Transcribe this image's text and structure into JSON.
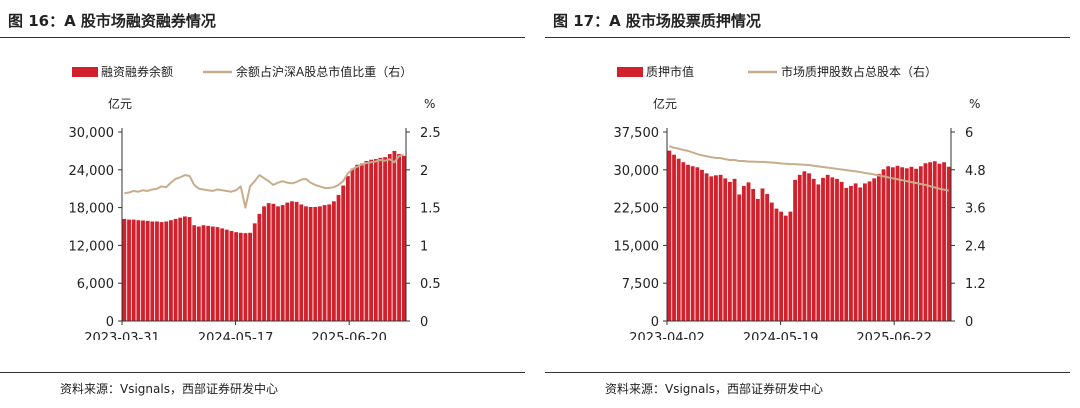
{
  "chart_data": [
    {
      "id": "fig16",
      "type": "bar+line",
      "title": "图 16：A 股市场融资融券情况",
      "left_unit": "亿元",
      "right_unit": "%",
      "legend": [
        "融资融券余额",
        "余额占沪深A股总市值比重（右）"
      ],
      "source": "资料来源：Vsignals，西部证券研发中心",
      "x_ticks": [
        "2023-03-31",
        "2024-05-17",
        "2025-06-20"
      ],
      "y_left_ticks": [
        "0",
        "6,000",
        "12,000",
        "18,000",
        "24,000",
        "30,000"
      ],
      "y_left_range": [
        0,
        30000
      ],
      "y_right_ticks": [
        "0",
        "0.5",
        "1",
        "1.5",
        "2",
        "2.5"
      ],
      "y_right_range": [
        0,
        2.5
      ],
      "bar_values": [
        16200,
        16100,
        16100,
        16000,
        15950,
        15900,
        15800,
        15800,
        15700,
        15800,
        16000,
        16200,
        16400,
        16600,
        16500,
        15200,
        15000,
        15200,
        15100,
        15000,
        14900,
        14700,
        14500,
        14300,
        14100,
        14000,
        13950,
        14000,
        15500,
        17000,
        18200,
        18700,
        18600,
        18200,
        18400,
        18800,
        19000,
        18900,
        18500,
        18200,
        18100,
        18100,
        18200,
        18400,
        18500,
        19000,
        20000,
        21500,
        23000,
        24200,
        24800,
        25000,
        25400,
        25600,
        25700,
        25900,
        26000,
        26500,
        27000,
        26500,
        26200
      ],
      "line_values": [
        1.69,
        1.7,
        1.72,
        1.71,
        1.73,
        1.72,
        1.74,
        1.75,
        1.78,
        1.77,
        1.83,
        1.88,
        1.9,
        1.93,
        1.92,
        1.8,
        1.75,
        1.74,
        1.73,
        1.72,
        1.74,
        1.73,
        1.72,
        1.71,
        1.73,
        1.78,
        1.5,
        1.78,
        1.85,
        1.93,
        1.89,
        1.85,
        1.8,
        1.83,
        1.85,
        1.83,
        1.82,
        1.84,
        1.87,
        1.88,
        1.83,
        1.8,
        1.78,
        1.76,
        1.76,
        1.77,
        1.8,
        1.85,
        1.95,
        2.01,
        2.04,
        2.07,
        2.09,
        2.1,
        2.11,
        2.13,
        2.12,
        2.14,
        2.1,
        2.18,
        2.2
      ],
      "bar_color": "#d0212d",
      "line_color": "#c8ad8d"
    },
    {
      "id": "fig17",
      "type": "bar+line",
      "title": "图 17：A 股市场股票质押情况",
      "left_unit": "亿元",
      "right_unit": "%",
      "legend": [
        "质押市值",
        "市场质押股数占总股本（右）"
      ],
      "source": "资料来源：Vsignals，西部证券研发中心",
      "x_ticks": [
        "2023-04-02",
        "2024-05-19",
        "2025-06-22"
      ],
      "y_left_ticks": [
        "0",
        "7,500",
        "15,000",
        "22,500",
        "30,000",
        "37,500"
      ],
      "y_left_range": [
        0,
        37500
      ],
      "y_right_ticks": [
        "0",
        "1.2",
        "2.4",
        "3.6",
        "4.8",
        "6"
      ],
      "y_right_range": [
        0,
        6
      ],
      "bar_values": [
        33800,
        33000,
        32200,
        31500,
        31000,
        30700,
        30500,
        30000,
        29300,
        28700,
        28900,
        29000,
        28300,
        27600,
        28200,
        25100,
        26800,
        27500,
        26200,
        24200,
        26300,
        25200,
        23500,
        22300,
        21700,
        20900,
        21700,
        28000,
        29000,
        29700,
        29300,
        28200,
        27100,
        28400,
        29000,
        28500,
        28200,
        27600,
        26400,
        26800,
        27300,
        26500,
        27300,
        27700,
        28300,
        29200,
        30100,
        30700,
        30500,
        30800,
        30500,
        30300,
        30600,
        30200,
        30700,
        31300,
        31500,
        31700,
        31200,
        31500,
        30600
      ],
      "line_values": [
        5.55,
        5.5,
        5.47,
        5.43,
        5.4,
        5.35,
        5.3,
        5.26,
        5.23,
        5.2,
        5.18,
        5.17,
        5.14,
        5.11,
        5.11,
        5.08,
        5.08,
        5.06,
        5.06,
        5.05,
        5.05,
        5.04,
        5.03,
        5.02,
        5.0,
        4.99,
        4.98,
        4.98,
        4.97,
        4.96,
        4.95,
        4.93,
        4.91,
        4.89,
        4.87,
        4.85,
        4.83,
        4.81,
        4.79,
        4.77,
        4.75,
        4.73,
        4.7,
        4.68,
        4.65,
        4.62,
        4.59,
        4.56,
        4.53,
        4.5,
        4.47,
        4.44,
        4.41,
        4.38,
        4.35,
        4.32,
        4.28,
        4.24,
        4.2,
        4.17,
        4.14
      ],
      "bar_color": "#d0212d",
      "line_color": "#c8ad8d"
    }
  ]
}
